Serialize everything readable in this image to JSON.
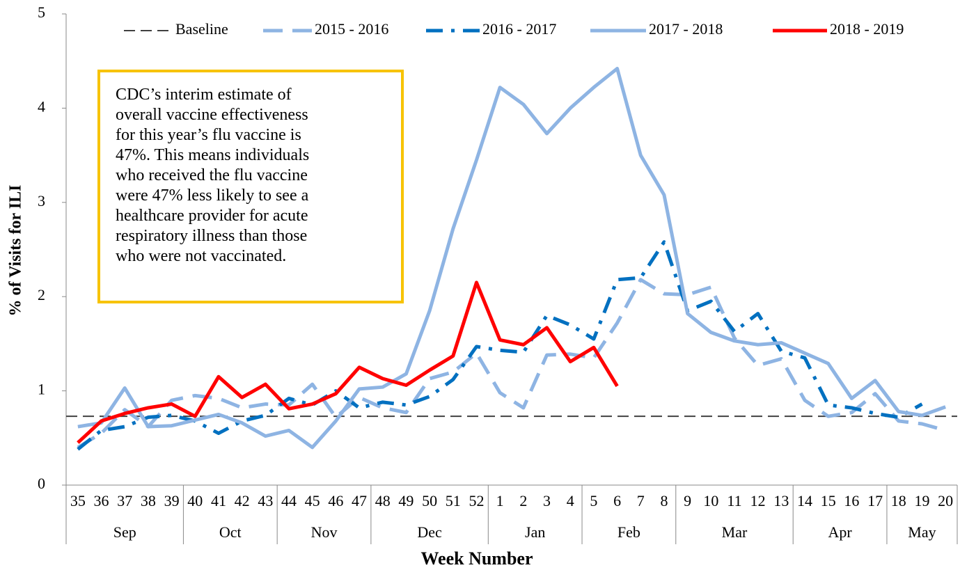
{
  "chart_data": {
    "type": "line",
    "ylabel": "% of Visits for ILI",
    "xlabel": "Week Number",
    "categories": [
      "35",
      "36",
      "37",
      "38",
      "39",
      "40",
      "41",
      "42",
      "43",
      "44",
      "45",
      "46",
      "47",
      "48",
      "49",
      "50",
      "51",
      "52",
      "1",
      "2",
      "3",
      "4",
      "5",
      "6",
      "7",
      "8",
      "9",
      "10",
      "11",
      "12",
      "13",
      "14",
      "15",
      "16",
      "17",
      "18",
      "19",
      "20"
    ],
    "months": [
      "Sep",
      "Sep",
      "Sep",
      "Sep",
      "Sep",
      "Oct",
      "Oct",
      "Oct",
      "Oct",
      "Nov",
      "Nov",
      "Nov",
      "Nov",
      "Dec",
      "Dec",
      "Dec",
      "Dec",
      "Dec",
      "Jan",
      "Jan",
      "Jan",
      "Jan",
      "Feb",
      "Feb",
      "Feb",
      "Feb",
      "Mar",
      "Mar",
      "Mar",
      "Mar",
      "Mar",
      "Apr",
      "Apr",
      "Apr",
      "Apr",
      "May",
      "May",
      "May"
    ],
    "ylim": [
      0,
      5
    ],
    "yticks": [
      0,
      1,
      2,
      3,
      4,
      5
    ],
    "baseline": {
      "name": "Baseline",
      "color": "#404040",
      "value": 0.73
    },
    "series": [
      {
        "name": "2015 - 2016",
        "color": "#8eb4e3",
        "dash": "28 14",
        "values": [
          0.4,
          0.55,
          0.8,
          0.62,
          0.9,
          0.95,
          0.92,
          0.82,
          0.86,
          0.85,
          1.07,
          0.72,
          0.93,
          0.82,
          0.77,
          1.13,
          1.2,
          1.4,
          0.98,
          0.82,
          1.38,
          1.39,
          1.35,
          1.72,
          2.18,
          2.03,
          2.02,
          2.1,
          1.56,
          1.27,
          1.34,
          0.9,
          0.73,
          0.77,
          0.97,
          0.68,
          0.65,
          0.58
        ]
      },
      {
        "name": "2016 - 2017",
        "color": "#0070c0",
        "dash": "24 12 5 12",
        "values": [
          0.38,
          0.58,
          0.62,
          0.72,
          0.74,
          0.68,
          0.55,
          0.68,
          0.74,
          0.92,
          0.85,
          1.0,
          0.82,
          0.88,
          0.85,
          0.94,
          1.12,
          1.47,
          1.43,
          1.41,
          1.8,
          1.7,
          1.55,
          2.18,
          2.2,
          2.58,
          1.85,
          1.95,
          1.63,
          1.82,
          1.42,
          1.35,
          0.85,
          0.82,
          0.76,
          0.72,
          0.86,
          null
        ]
      },
      {
        "name": "2017 - 2018",
        "color": "#8eb4e3",
        "dash": "",
        "values": [
          0.62,
          0.66,
          1.03,
          0.62,
          0.63,
          0.69,
          0.75,
          0.66,
          0.52,
          0.58,
          0.4,
          0.68,
          1.02,
          1.04,
          1.18,
          1.85,
          2.72,
          3.45,
          4.22,
          4.04,
          3.73,
          4.0,
          4.22,
          4.42,
          3.5,
          3.08,
          1.82,
          1.62,
          1.53,
          1.49,
          1.51,
          1.4,
          1.29,
          0.92,
          1.11,
          0.78,
          0.74,
          0.83
        ]
      },
      {
        "name": "2018 - 2019",
        "color": "#ff0000",
        "dash": "",
        "values": [
          0.45,
          0.68,
          0.76,
          0.82,
          0.86,
          0.73,
          1.15,
          0.93,
          1.07,
          0.81,
          0.86,
          0.97,
          1.25,
          1.13,
          1.06,
          1.22,
          1.37,
          2.15,
          1.54,
          1.49,
          1.67,
          1.31,
          1.46,
          1.05,
          null,
          null,
          null,
          null,
          null,
          null,
          null,
          null,
          null,
          null,
          null,
          null,
          null,
          null
        ]
      }
    ],
    "annotation": [
      "CDC’s interim estimate of",
      "overall vaccine effectiveness",
      "for this year’s flu vaccine is",
      "47%. This means individuals",
      "who received the flu vaccine",
      "were 47% less likely to see a",
      "healthcare provider for acute",
      "respiratory illness than those",
      "who were not vaccinated."
    ]
  }
}
